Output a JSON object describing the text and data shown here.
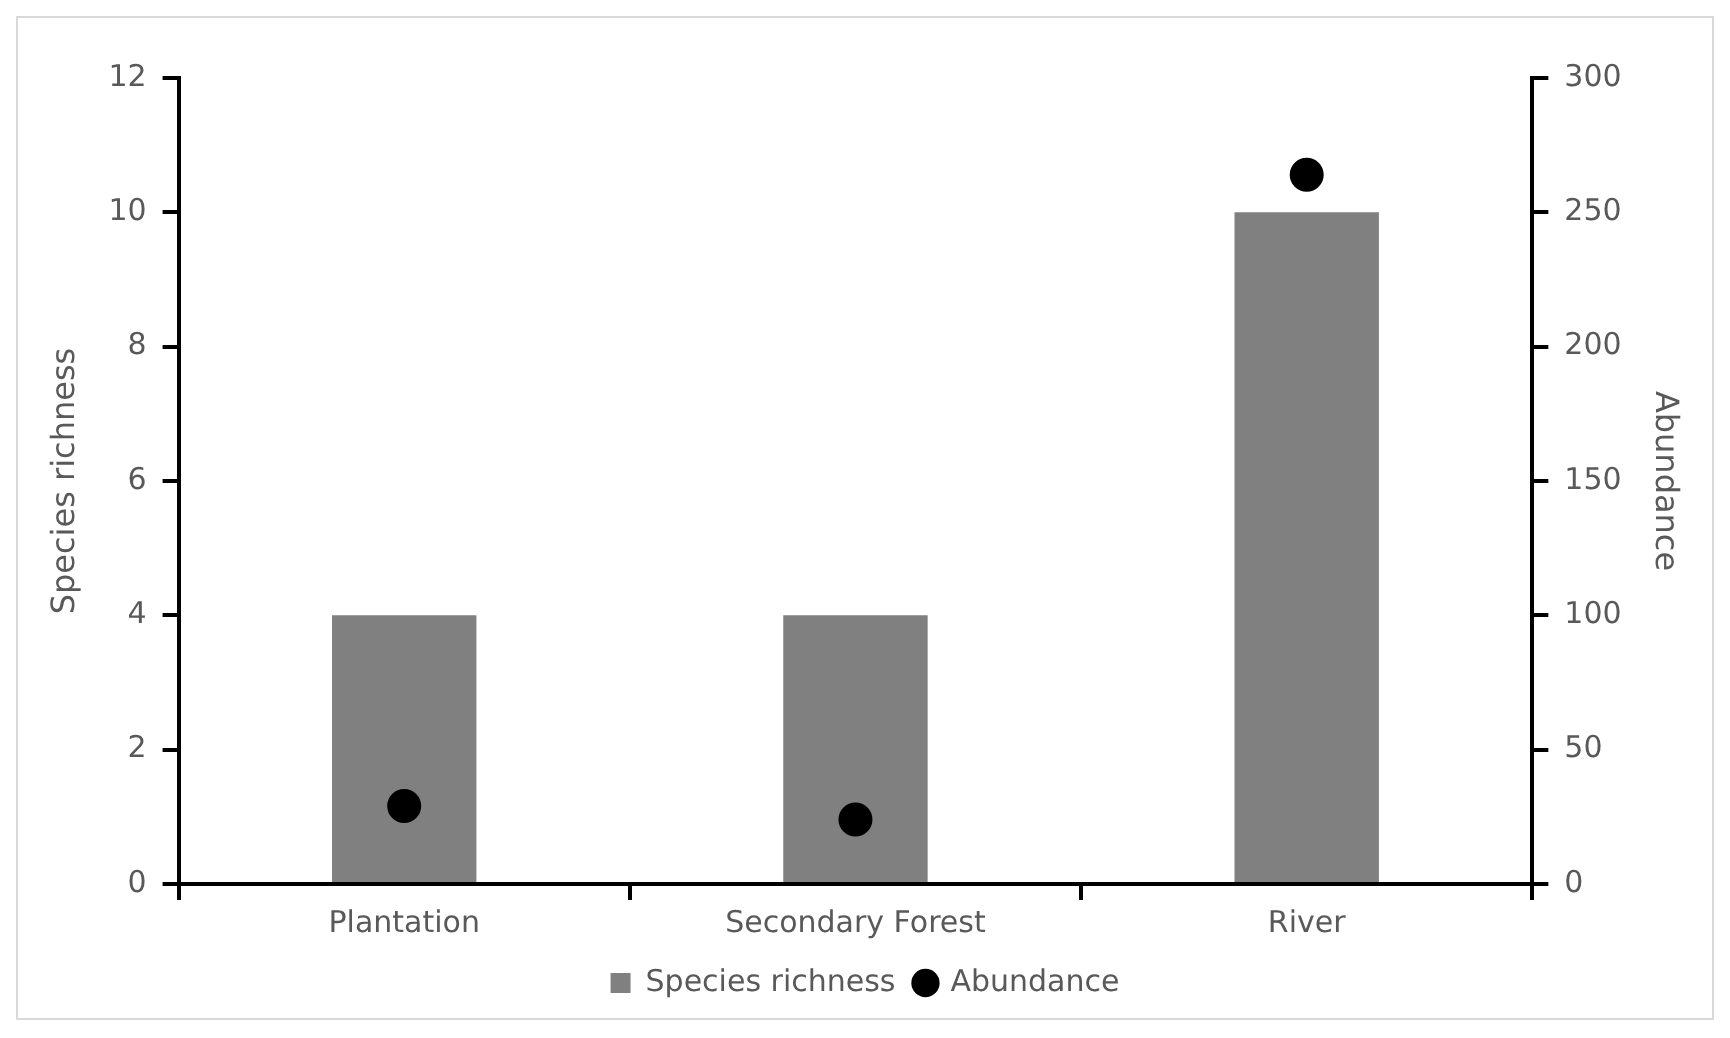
{
  "chart_data": {
    "type": "bar",
    "categories": [
      "Plantation",
      "Secondary Forest",
      "River"
    ],
    "ylabel": "Species richness",
    "y2label": "Abundance",
    "series": [
      {
        "name": "Species richness",
        "color": "#808080",
        "values": [
          4,
          4,
          10
        ]
      },
      {
        "name": "Abundance",
        "type": "scatter",
        "axis": "y2",
        "color": "#000000",
        "x": [
          "Plantation",
          "Secondary Forest",
          "River"
        ],
        "values": [
          29,
          24,
          264
        ]
      }
    ],
    "ylim": [
      0,
      12
    ],
    "yticks": [
      0,
      2,
      4,
      6,
      8,
      10,
      12
    ],
    "y2lim": [
      0,
      300
    ],
    "y2ticks": [
      0,
      50,
      100,
      150,
      200,
      250,
      300
    ],
    "grid": false,
    "legend": "bottom",
    "marker": "circle"
  }
}
